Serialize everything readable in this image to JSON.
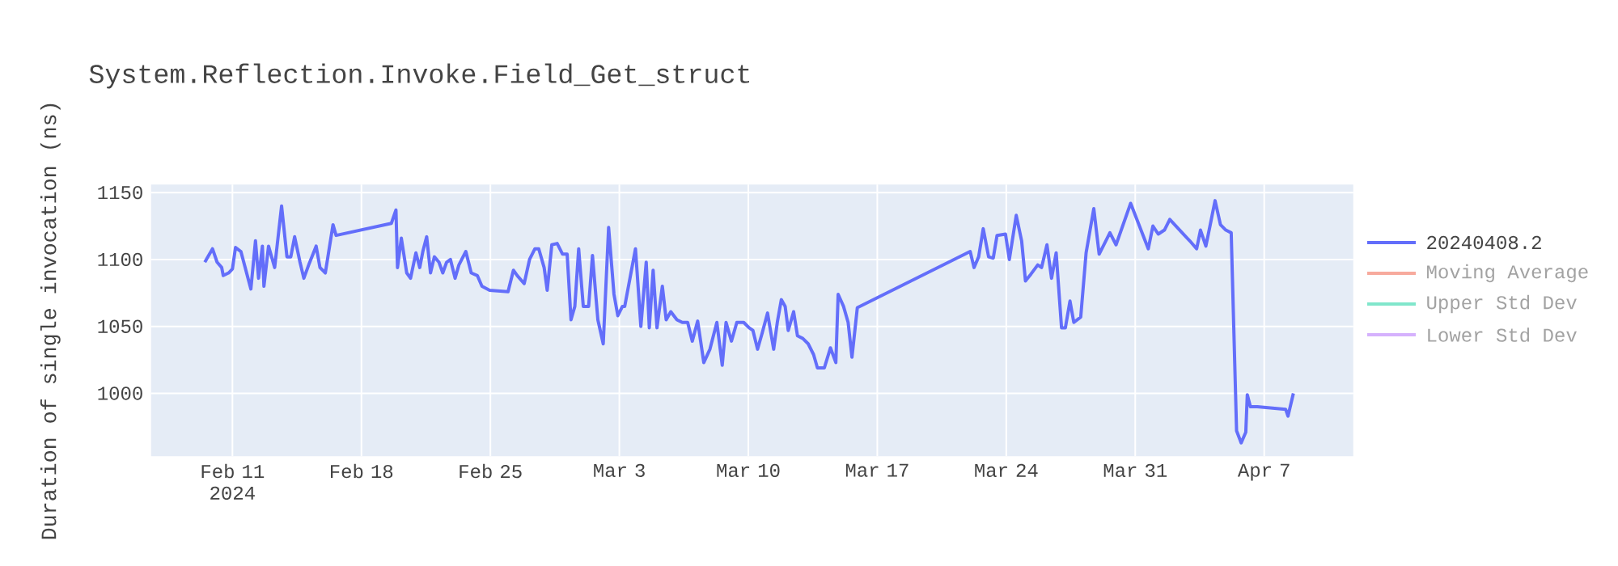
{
  "chart_data": {
    "type": "line",
    "title": "System.Reflection.Invoke.Field_Get_struct",
    "ylabel": "Duration of single invocation (ns)",
    "xlim": [
      "2024-02-06T14:00",
      "2024-04-11T20:00"
    ],
    "ylim": [
      953,
      1156
    ],
    "xticks": [
      {
        "value": "2024-02-11",
        "label": "Feb 11 2024"
      },
      {
        "value": "2024-02-18",
        "label": "Feb 18"
      },
      {
        "value": "2024-02-25",
        "label": "Feb 25"
      },
      {
        "value": "2024-03-03",
        "label": "Mar 3"
      },
      {
        "value": "2024-03-10",
        "label": "Mar 10"
      },
      {
        "value": "2024-03-17",
        "label": "Mar 17"
      },
      {
        "value": "2024-03-24",
        "label": "Mar 24"
      },
      {
        "value": "2024-03-31",
        "label": "Mar 31"
      },
      {
        "value": "2024-04-07",
        "label": "Apr 7"
      }
    ],
    "yticks": [
      1000,
      1050,
      1100,
      1150
    ],
    "grid": true,
    "legend": "right",
    "series": [
      {
        "name": "20240408.2",
        "color": "#636efa",
        "x": [
          "2024-02-09T12:00",
          "2024-02-09T22:00",
          "2024-02-10T04:00",
          "2024-02-10T10:00",
          "2024-02-10T12:00",
          "2024-02-10T19:00",
          "2024-02-11T00:00",
          "2024-02-11T04:00",
          "2024-02-11T11:00",
          "2024-02-12T00:00",
          "2024-02-12T06:00",
          "2024-02-12T10:00",
          "2024-02-12T15:00",
          "2024-02-12T17:00",
          "2024-02-12T23:00",
          "2024-02-13T07:00",
          "2024-02-13T16:00",
          "2024-02-13T23:00",
          "2024-02-14T04:00",
          "2024-02-14T09:00",
          "2024-02-14T16:00",
          "2024-02-14T21:00",
          "2024-02-15T04:00",
          "2024-02-15T13:00",
          "2024-02-15T18:00",
          "2024-02-16T01:00",
          "2024-02-16T11:00",
          "2024-02-16T15:00",
          "2024-02-19T15:00",
          "2024-02-19T21:00",
          "2024-02-19T23:00",
          "2024-02-20T04:00",
          "2024-02-20T11:00",
          "2024-02-20T16:00",
          "2024-02-20T23:00",
          "2024-02-21T04:00",
          "2024-02-21T08:00",
          "2024-02-21T13:00",
          "2024-02-21T18:00",
          "2024-02-21T23:00",
          "2024-02-22T05:00",
          "2024-02-22T10:00",
          "2024-02-22T15:00",
          "2024-02-22T20:00",
          "2024-02-23T02:00",
          "2024-02-23T07:00",
          "2024-02-23T16:00",
          "2024-02-23T23:00",
          "2024-02-24T07:00",
          "2024-02-24T13:00",
          "2024-02-24T23:00",
          "2024-02-25T23:00",
          "2024-02-26T06:00",
          "2024-02-26T11:00",
          "2024-02-26T20:00",
          "2024-02-27T03:00",
          "2024-02-27T10:00",
          "2024-02-27T15:00",
          "2024-02-27T22:00",
          "2024-02-28T02:00",
          "2024-02-28T08:00",
          "2024-02-28T15:00",
          "2024-02-28T22:00",
          "2024-02-29T04:00",
          "2024-02-29T09:00",
          "2024-02-29T14:00",
          "2024-02-29T19:00",
          "2024-03-01T01:00",
          "2024-03-01T08:00",
          "2024-03-01T13:00",
          "2024-03-01T20:00",
          "2024-03-02T03:00",
          "2024-03-02T10:00",
          "2024-03-02T17:00",
          "2024-03-02T22:00",
          "2024-03-03T04:00",
          "2024-03-03T07:00",
          "2024-03-03T21:00",
          "2024-03-04T04:00",
          "2024-03-04T11:00",
          "2024-03-04T15:00",
          "2024-03-04T20:00",
          "2024-03-05T01:00",
          "2024-03-05T08:00",
          "2024-03-05T13:00",
          "2024-03-05T19:00",
          "2024-03-06T03:00",
          "2024-03-06T10:00",
          "2024-03-06T17:00",
          "2024-03-06T23:00",
          "2024-03-07T06:00",
          "2024-03-07T14:00",
          "2024-03-07T22:00",
          "2024-03-08T07:00",
          "2024-03-08T14:00",
          "2024-03-08T19:00",
          "2024-03-09T02:00",
          "2024-03-09T09:00",
          "2024-03-09T18:00",
          "2024-03-10T01:00",
          "2024-03-10T06:00",
          "2024-03-10T12:00",
          "2024-03-10T18:00",
          "2024-03-11T01:00",
          "2024-03-11T09:00",
          "2024-03-11T14:00",
          "2024-03-11T19:00",
          "2024-03-12T00:00",
          "2024-03-12T04:00",
          "2024-03-12T11:00",
          "2024-03-12T16:00",
          "2024-03-12T23:00",
          "2024-03-13T06:00",
          "2024-03-13T13:00",
          "2024-03-13T18:00",
          "2024-03-14T03:00",
          "2024-03-14T11:00",
          "2024-03-14T18:00",
          "2024-03-14T21:00",
          "2024-03-15T04:00",
          "2024-03-15T10:00",
          "2024-03-15T15:00",
          "2024-03-15T22:00",
          "2024-03-22T01:00",
          "2024-03-22T06:00",
          "2024-03-22T12:00",
          "2024-03-22T18:00",
          "2024-03-23T01:00",
          "2024-03-23T07:00",
          "2024-03-23T12:00",
          "2024-03-23T23:00",
          "2024-03-24T04:00",
          "2024-03-24T13:00",
          "2024-03-24T20:00",
          "2024-03-25T01:00",
          "2024-03-25T08:00",
          "2024-03-25T17:00",
          "2024-03-25T22:00",
          "2024-03-26T05:00",
          "2024-03-26T11:00",
          "2024-03-26T17:00",
          "2024-03-27T00:00",
          "2024-03-27T05:00",
          "2024-03-27T11:00",
          "2024-03-27T16:00",
          "2024-03-28T01:00",
          "2024-03-28T08:00",
          "2024-03-28T18:00",
          "2024-03-29T01:00",
          "2024-03-29T08:00",
          "2024-03-29T15:00",
          "2024-03-29T23:00",
          "2024-03-30T18:00",
          "2024-03-31T17:00",
          "2024-03-31T23:00",
          "2024-04-01T06:00",
          "2024-04-01T14:00",
          "2024-04-01T21:00",
          "2024-04-02T18:00",
          "2024-04-02T23:00",
          "2024-04-03T08:00",
          "2024-04-03T13:00",
          "2024-04-03T20:00",
          "2024-04-04T01:00",
          "2024-04-04T08:00",
          "2024-04-04T15:00",
          "2024-04-04T22:00",
          "2024-04-05T05:00",
          "2024-04-05T12:00",
          "2024-04-05T18:00",
          "2024-04-06T00:00",
          "2024-04-06T02:00",
          "2024-04-06T06:00",
          "2024-04-06T15:00",
          "2024-04-08T04:00",
          "2024-04-08T07:00",
          "2024-04-08T14:00"
        ],
        "values": [
          1098,
          1108,
          1098,
          1094,
          1088,
          1090,
          1093,
          1109,
          1106,
          1078,
          1114,
          1086,
          1110,
          1080,
          1110,
          1094,
          1140,
          1102,
          1102,
          1117,
          1098,
          1086,
          1097,
          1110,
          1094,
          1090,
          1126,
          1118,
          1127,
          1137,
          1094,
          1116,
          1090,
          1086,
          1105,
          1094,
          1106,
          1117,
          1090,
          1102,
          1098,
          1090,
          1098,
          1100,
          1086,
          1096,
          1106,
          1090,
          1088,
          1080,
          1077,
          1076,
          1092,
          1088,
          1082,
          1100,
          1108,
          1108,
          1094,
          1077,
          1111,
          1112,
          1104,
          1104,
          1055,
          1065,
          1108,
          1065,
          1065,
          1103,
          1055,
          1037,
          1124,
          1074,
          1058,
          1065,
          1065,
          1108,
          1050,
          1098,
          1049,
          1092,
          1049,
          1080,
          1055,
          1061,
          1055,
          1053,
          1053,
          1039,
          1054,
          1023,
          1033,
          1053,
          1021,
          1053,
          1039,
          1053,
          1053,
          1049,
          1047,
          1033,
          1045,
          1060,
          1033,
          1054,
          1070,
          1065,
          1047,
          1061,
          1043,
          1041,
          1037,
          1029,
          1019,
          1019,
          1034,
          1023,
          1074,
          1065,
          1053,
          1027,
          1064,
          1106,
          1094,
          1102,
          1123,
          1102,
          1101,
          1118,
          1119,
          1100,
          1133,
          1114,
          1084,
          1089,
          1096,
          1094,
          1111,
          1086,
          1105,
          1049,
          1049,
          1069,
          1053,
          1057,
          1105,
          1138,
          1104,
          1112,
          1120,
          1111,
          1142,
          1108,
          1125,
          1119,
          1122,
          1130,
          1117,
          1114,
          1108,
          1122,
          1110,
          1124,
          1144,
          1126,
          1122,
          1120,
          972,
          963,
          971,
          999,
          990,
          990,
          988,
          983,
          1000
        ]
      },
      {
        "name": "Moving Average",
        "color": "#f7aa9d"
      },
      {
        "name": "Upper Std Dev",
        "color": "#80e6cb"
      },
      {
        "name": "Lower Std Dev",
        "color": "#d5b1fd"
      }
    ]
  }
}
